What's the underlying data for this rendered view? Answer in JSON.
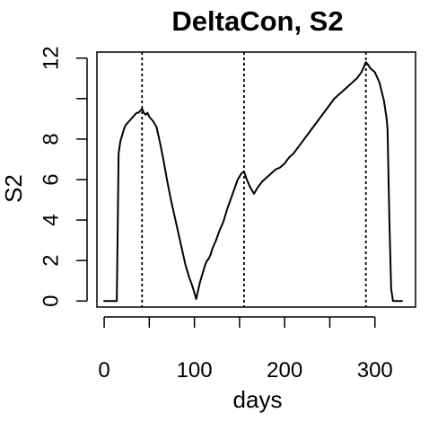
{
  "chart_data": {
    "type": "line",
    "title": "DeltaCon, S2",
    "xlabel": "days",
    "ylabel": "S2",
    "xlim": [
      -8,
      345
    ],
    "ylim": [
      -0.3,
      12.3
    ],
    "x_ticks": [
      0,
      100,
      200,
      300
    ],
    "x_tick_labels": [
      "0",
      "100",
      "200",
      "300"
    ],
    "y_ticks": [
      0,
      2,
      4,
      6,
      8,
      10,
      12
    ],
    "y_tick_labels": [
      "0",
      "2",
      "4",
      "6",
      "8",
      "",
      "12"
    ],
    "vlines": [
      42,
      155,
      290
    ],
    "grid": false,
    "series": [
      {
        "x": [
          0,
          14,
          15,
          16,
          18,
          20,
          22,
          24,
          26,
          28,
          30,
          32,
          34,
          36,
          38,
          40,
          42,
          44,
          46,
          48,
          50,
          54,
          58,
          62,
          66,
          70,
          74,
          78,
          82,
          86,
          90,
          94,
          98,
          102,
          104,
          106,
          108,
          110,
          112,
          114,
          116,
          118,
          120,
          124,
          128,
          132,
          136,
          140,
          144,
          148,
          152,
          155,
          158,
          162,
          166,
          170,
          175,
          180,
          185,
          190,
          195,
          200,
          205,
          210,
          215,
          220,
          225,
          230,
          235,
          240,
          245,
          250,
          255,
          260,
          265,
          270,
          275,
          280,
          285,
          288,
          290,
          292,
          295,
          300,
          305,
          310,
          313,
          314,
          316,
          318,
          320,
          330
        ],
        "y": [
          0,
          0,
          3.5,
          7.3,
          7.9,
          8.2,
          8.5,
          8.7,
          8.8,
          8.9,
          9.0,
          9.1,
          9.2,
          9.3,
          9.3,
          9.4,
          9.5,
          9.3,
          9.2,
          9.3,
          9.1,
          8.9,
          8.6,
          7.8,
          6.9,
          5.9,
          5.0,
          4.2,
          3.4,
          2.6,
          1.8,
          1.2,
          0.7,
          0.1,
          0.5,
          0.9,
          1.2,
          1.5,
          1.8,
          2.0,
          2.1,
          2.3,
          2.6,
          3.0,
          3.5,
          3.9,
          4.5,
          5.0,
          5.5,
          6.0,
          6.3,
          6.4,
          6.0,
          5.6,
          5.3,
          5.6,
          5.9,
          6.1,
          6.3,
          6.5,
          6.6,
          6.8,
          7.1,
          7.3,
          7.6,
          7.9,
          8.2,
          8.5,
          8.8,
          9.1,
          9.4,
          9.7,
          10.0,
          10.2,
          10.4,
          10.6,
          10.8,
          11.0,
          11.3,
          11.6,
          11.8,
          11.7,
          11.5,
          11.3,
          10.8,
          9.9,
          9.0,
          8.5,
          4.0,
          0.6,
          0,
          0
        ]
      }
    ]
  }
}
